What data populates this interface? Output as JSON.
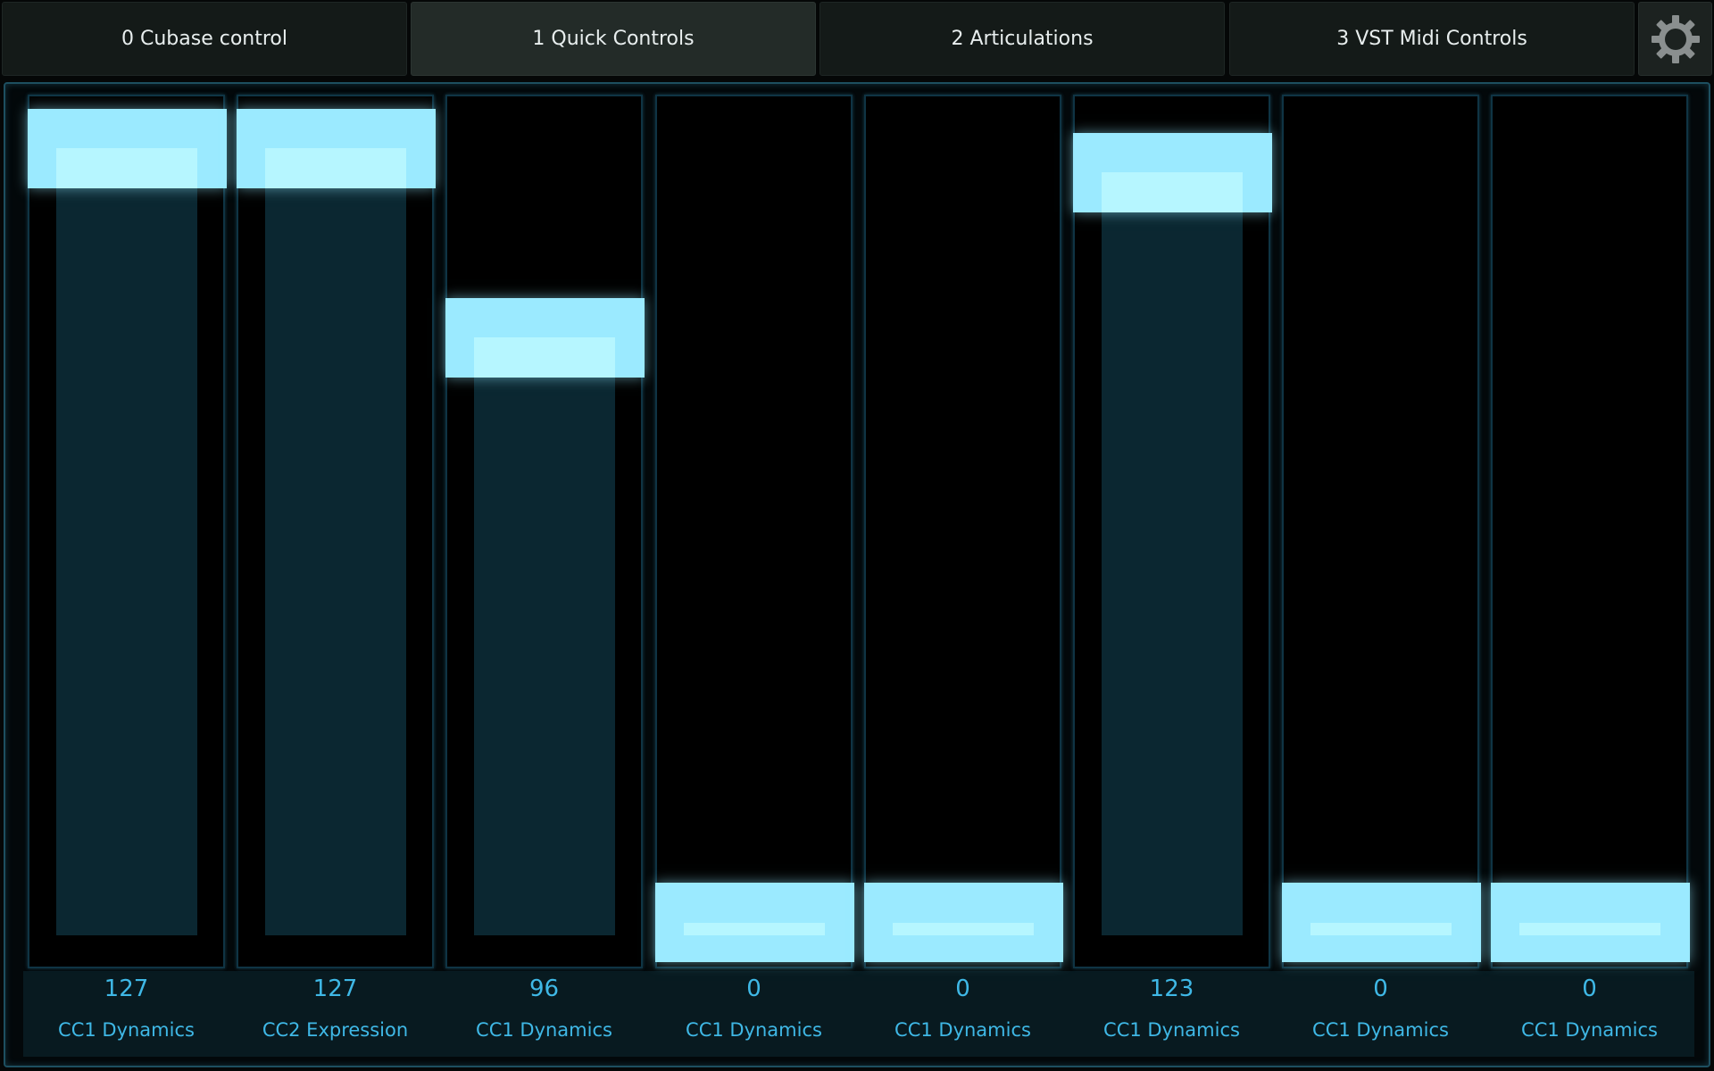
{
  "tabs": [
    {
      "label": "0 Cubase control",
      "active": false
    },
    {
      "label": "1 Quick Controls",
      "active": true
    },
    {
      "label": "2 Articulations",
      "active": false
    },
    {
      "label": "3 VST Midi Controls",
      "active": false
    }
  ],
  "settings_icon": "gear-icon",
  "faders": [
    {
      "value": "127",
      "name": "CC1 Dynamics"
    },
    {
      "value": "127",
      "name": "CC2 Expression"
    },
    {
      "value": "96",
      "name": "CC1 Dynamics"
    },
    {
      "value": "0",
      "name": "CC1 Dynamics"
    },
    {
      "value": "0",
      "name": "CC1 Dynamics"
    },
    {
      "value": "123",
      "name": "CC1 Dynamics"
    },
    {
      "value": "0",
      "name": "CC1 Dynamics"
    },
    {
      "value": "0",
      "name": "CC1 Dynamics"
    }
  ],
  "value_max": 127,
  "colors": {
    "handle": "#9beaff",
    "fill": "#0b2731",
    "label_text": "#3fb8e6",
    "panel_border": "#1d4f60"
  }
}
